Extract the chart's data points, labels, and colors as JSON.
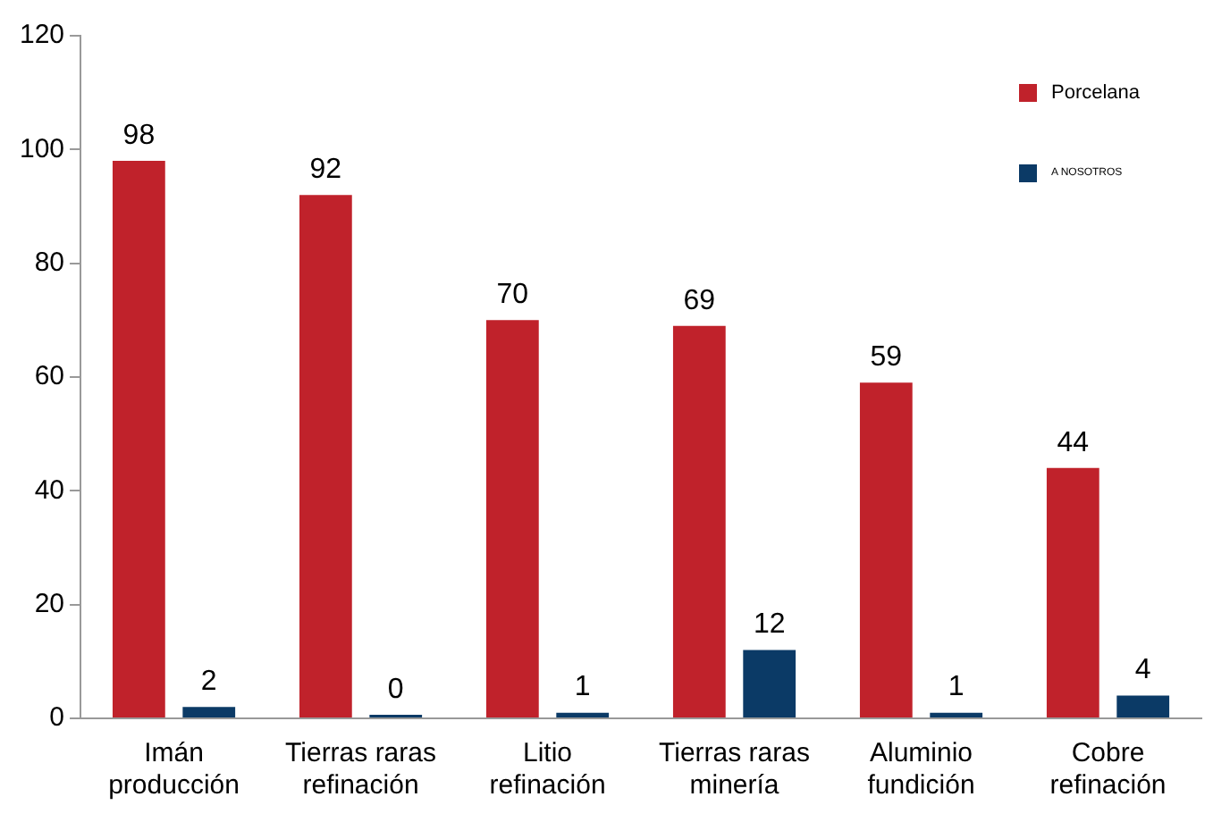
{
  "chart_data": {
    "type": "bar",
    "categories": [
      "Imán\nproducción",
      "Tierras raras\nrefinación",
      "Litio\nrefinación",
      "Tierras raras\nminería",
      "Aluminio\nfundición",
      "Cobre\nrefinación"
    ],
    "series": [
      {
        "name": "Porcelana",
        "color": "#c0222b",
        "values": [
          98,
          92,
          70,
          69,
          59,
          44
        ]
      },
      {
        "name": "A NOSOTROS",
        "color": "#0b3a66",
        "values": [
          2,
          0,
          1,
          12,
          1,
          4
        ]
      }
    ],
    "ylim": [
      0,
      120
    ],
    "yticks": [
      0,
      20,
      40,
      60,
      80,
      100,
      120
    ],
    "grid": false,
    "data_labels": true,
    "legend": "top right"
  }
}
